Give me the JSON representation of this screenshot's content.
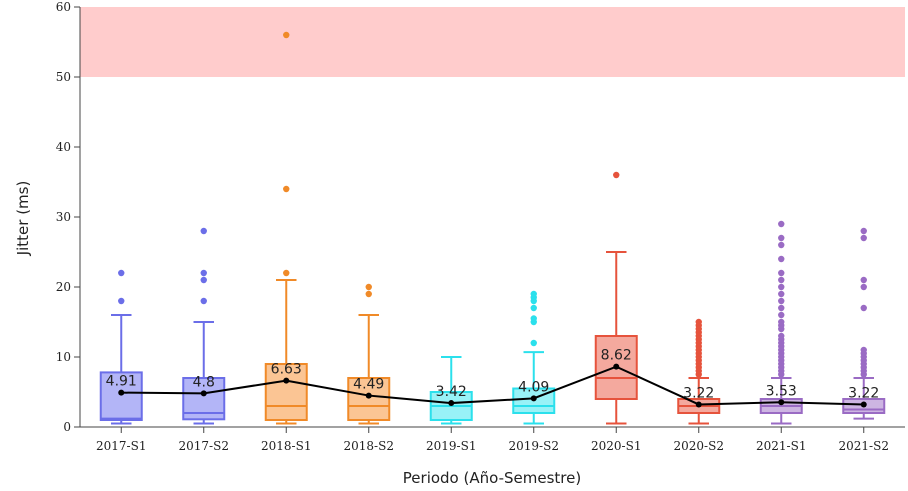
{
  "chart_data": {
    "type": "box",
    "xlabel": "Periodo (Año-Semestre)",
    "ylabel": "Jitter (ms)",
    "ylim": [
      0,
      60
    ],
    "yticks": [
      0,
      10,
      20,
      30,
      40,
      50,
      60
    ],
    "threshold_band": {
      "from": 50,
      "to": 60,
      "color": "#ffcccc"
    },
    "grid": false,
    "categories": [
      "2017-S1",
      "2017-S2",
      "2018-S1",
      "2018-S2",
      "2019-S1",
      "2019-S2",
      "2020-S1",
      "2020-S2",
      "2021-S1",
      "2021-S2"
    ],
    "boxes": [
      {
        "color": "#6b6ee8",
        "fill": "#b3b5f7",
        "min": 0.5,
        "q1": 1,
        "median": 1.2,
        "q3": 7.8,
        "max": 16,
        "outliers": [
          18,
          22
        ]
      },
      {
        "color": "#6b6ee8",
        "fill": "#b3b5f7",
        "min": 0.5,
        "q1": 1.1,
        "median": 2,
        "q3": 7,
        "max": 15,
        "outliers": [
          18,
          21,
          22,
          28
        ]
      },
      {
        "color": "#f08a28",
        "fill": "#fbc594",
        "min": 0.5,
        "q1": 1,
        "median": 3,
        "q3": 9,
        "max": 21,
        "outliers": [
          22,
          34,
          56
        ]
      },
      {
        "color": "#f08a28",
        "fill": "#fbc594",
        "min": 0.5,
        "q1": 1,
        "median": 3,
        "q3": 7,
        "max": 16,
        "outliers": [
          19,
          20
        ]
      },
      {
        "color": "#2be0ec",
        "fill": "#98f2f7",
        "min": 0.5,
        "q1": 1,
        "median": 3,
        "q3": 5,
        "max": 10,
        "outliers": []
      },
      {
        "color": "#2be0ec",
        "fill": "#98f2f7",
        "min": 0.5,
        "q1": 2,
        "median": 3,
        "q3": 5.5,
        "max": 10.7,
        "outliers": [
          12,
          15,
          15.5,
          17,
          18,
          18.5,
          19
        ]
      },
      {
        "color": "#e6533c",
        "fill": "#f4a99e",
        "min": 0.5,
        "q1": 4,
        "median": 7,
        "q3": 13,
        "max": 25,
        "outliers": [
          36
        ]
      },
      {
        "color": "#e6533c",
        "fill": "#f4a99e",
        "min": 0.5,
        "q1": 2,
        "median": 3,
        "q3": 4,
        "max": 7,
        "outliers": [
          7.5,
          8,
          8.5,
          9,
          9.5,
          10,
          10.5,
          11,
          11.5,
          12,
          12.5,
          13,
          13.5,
          14,
          14.5,
          15
        ]
      },
      {
        "color": "#9a6bc4",
        "fill": "#cdb5e2",
        "min": 0.5,
        "q1": 2,
        "median": 3,
        "q3": 4,
        "max": 7,
        "outliers": [
          7.5,
          8,
          8.5,
          9,
          9.5,
          10,
          10.5,
          11,
          11.5,
          12,
          12.5,
          13,
          14,
          14.5,
          15,
          16,
          17,
          18,
          19,
          20,
          21,
          22,
          24,
          26,
          27,
          29
        ]
      },
      {
        "color": "#9a6bc4",
        "fill": "#cdb5e2",
        "min": 1.2,
        "q1": 2,
        "median": 2.5,
        "q3": 4,
        "max": 7,
        "outliers": [
          7.5,
          8,
          8.5,
          9,
          9.5,
          10,
          10.5,
          11,
          17,
          20,
          21,
          27,
          28
        ]
      }
    ],
    "mean_series": {
      "color": "#000000",
      "values": [
        4.91,
        4.8,
        6.63,
        4.49,
        3.42,
        4.09,
        8.62,
        3.22,
        3.53,
        3.22
      ],
      "labels": [
        "4.91",
        "4.8",
        "6.63",
        "4.49",
        "3.42",
        "4.09",
        "8.62",
        "3.22",
        "3.53",
        "3.22"
      ]
    }
  }
}
